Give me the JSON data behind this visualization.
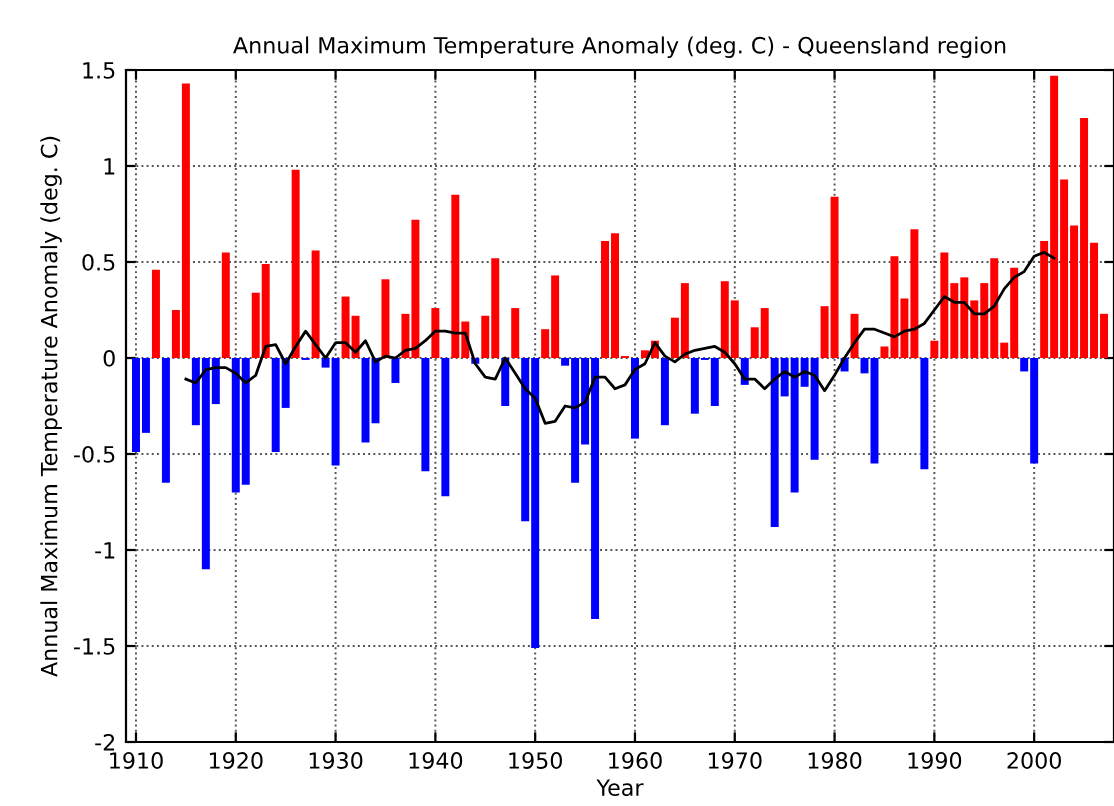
{
  "chart_data": {
    "type": "bar",
    "title": "Annual Maximum Temperature Anomaly (deg. C) - Queensland region",
    "xlabel": "Year",
    "ylabel": "Annual Maximum Temperature Anomaly (deg. C)",
    "xlim": [
      1909,
      2008
    ],
    "xticks": [
      1910,
      1920,
      1930,
      1940,
      1950,
      1960,
      1970,
      1980,
      1990,
      2000
    ],
    "ylim": [
      -2,
      1.5
    ],
    "yticks": [
      -2,
      -1.5,
      -1,
      -0.5,
      0,
      0.5,
      1,
      1.5
    ],
    "grid": true,
    "series": [
      {
        "colors": [
          "#0000ff",
          "#0000ff",
          "#ff0000",
          "#0000ff",
          "#ff0000",
          "#ff0000",
          "#0000ff",
          "#0000ff",
          "#0000ff",
          "#ff0000",
          "#0000ff",
          "#0000ff",
          "#ff0000",
          "#ff0000",
          "#0000ff",
          "#0000ff",
          "#ff0000",
          "#0000ff",
          "#ff0000",
          "#0000ff",
          "#0000ff",
          "#ff0000",
          "#ff0000",
          "#0000ff",
          "#0000ff",
          "#ff0000",
          "#0000ff",
          "#ff0000",
          "#ff0000",
          "#0000ff",
          "#ff0000",
          "#0000ff",
          "#ff0000",
          "#ff0000",
          "#0000ff",
          "#ff0000",
          "#ff0000",
          "#0000ff",
          "#ff0000",
          "#0000ff",
          "#0000ff",
          "#ff0000",
          "#ff0000",
          "#0000ff",
          "#0000ff",
          "#0000ff",
          "#0000ff",
          "#ff0000",
          "#ff0000",
          "#ff0000",
          "#0000ff",
          "#ff0000",
          "#ff0000",
          "#0000ff",
          "#ff0000",
          "#ff0000",
          "#0000ff",
          "#0000ff",
          "#0000ff",
          "#ff0000",
          "#ff0000",
          "#0000ff",
          "#ff0000",
          "#ff0000",
          "#0000ff",
          "#0000ff",
          "#0000ff",
          "#0000ff",
          "#0000ff",
          "#ff0000",
          "#ff0000",
          "#0000ff",
          "#ff0000",
          "#0000ff",
          "#0000ff",
          "#ff0000",
          "#ff0000",
          "#ff0000",
          "#ff0000",
          "#0000ff",
          "#ff0000",
          "#ff0000",
          "#ff0000",
          "#ff0000",
          "#ff0000",
          "#ff0000",
          "#ff0000",
          "#ff0000",
          "#ff0000",
          "#0000ff",
          "#0000ff",
          "#ff0000",
          "#ff0000",
          "#ff0000",
          "#ff0000",
          "#ff0000",
          "#ff0000",
          "#ff0000"
        ],
        "x": [
          1910,
          1911,
          1912,
          1913,
          1914,
          1915,
          1916,
          1917,
          1918,
          1919,
          1920,
          1921,
          1922,
          1923,
          1924,
          1925,
          1926,
          1927,
          1928,
          1929,
          1930,
          1931,
          1932,
          1933,
          1934,
          1935,
          1936,
          1937,
          1938,
          1939,
          1940,
          1941,
          1942,
          1943,
          1944,
          1945,
          1946,
          1947,
          1948,
          1949,
          1950,
          1951,
          1952,
          1953,
          1954,
          1955,
          1956,
          1957,
          1958,
          1959,
          1960,
          1961,
          1962,
          1963,
          1964,
          1965,
          1966,
          1967,
          1968,
          1969,
          1970,
          1971,
          1972,
          1973,
          1974,
          1975,
          1976,
          1977,
          1978,
          1979,
          1980,
          1981,
          1982,
          1983,
          1984,
          1985,
          1986,
          1987,
          1988,
          1989,
          1990,
          1991,
          1992,
          1993,
          1994,
          1995,
          1996,
          1997,
          1998,
          1999,
          2000,
          2001,
          2002,
          2003,
          2004,
          2005,
          2006,
          2007
        ],
        "values": [
          -0.49,
          -0.39,
          0.46,
          -0.65,
          0.25,
          1.43,
          -0.35,
          -1.1,
          -0.24,
          0.55,
          -0.7,
          -0.66,
          0.34,
          0.49,
          -0.49,
          -0.26,
          0.98,
          -0.01,
          0.56,
          -0.05,
          -0.56,
          0.32,
          0.22,
          -0.44,
          -0.34,
          0.41,
          -0.13,
          0.23,
          0.72,
          -0.59,
          0.26,
          -0.72,
          0.85,
          0.19,
          -0.03,
          0.22,
          0.52,
          -0.25,
          0.26,
          -0.85,
          -1.51,
          0.15,
          0.43,
          -0.04,
          -0.65,
          -0.45,
          -1.36,
          0.61,
          0.65,
          0.01,
          -0.42,
          0.04,
          0.09,
          -0.35,
          0.21,
          0.39,
          -0.29,
          -0.01,
          -0.25,
          0.4,
          0.3,
          -0.14,
          0.16,
          0.26,
          -0.88,
          -0.2,
          -0.7,
          -0.15,
          -0.53,
          0.27,
          0.84,
          -0.07,
          0.23,
          -0.08,
          -0.55,
          0.06,
          0.53,
          0.31,
          0.67,
          -0.58,
          0.09,
          0.55,
          0.39,
          0.42,
          0.3,
          0.39,
          0.52,
          0.08,
          0.47,
          -0.07,
          -0.55,
          0.61,
          1.47,
          0.93,
          0.69,
          1.25,
          0.6,
          0.23
        ]
      },
      {
        "type": "line",
        "color": "#000000",
        "x": [
          1915,
          1916,
          1917,
          1918,
          1919,
          1920,
          1921,
          1922,
          1923,
          1924,
          1925,
          1926,
          1927,
          1928,
          1929,
          1930,
          1931,
          1932,
          1933,
          1934,
          1935,
          1936,
          1937,
          1938,
          1939,
          1940,
          1941,
          1942,
          1943,
          1944,
          1945,
          1946,
          1947,
          1948,
          1949,
          1950,
          1951,
          1952,
          1953,
          1954,
          1955,
          1956,
          1957,
          1958,
          1959,
          1960,
          1961,
          1962,
          1963,
          1964,
          1965,
          1966,
          1967,
          1968,
          1969,
          1970,
          1971,
          1972,
          1973,
          1974,
          1975,
          1976,
          1977,
          1978,
          1979,
          1980,
          1981,
          1982,
          1983,
          1984,
          1985,
          1986,
          1987,
          1988,
          1989,
          1990,
          1991,
          1992,
          1993,
          1994,
          1995,
          1996,
          1997,
          1998,
          1999,
          2000,
          2001,
          2002
        ],
        "values": [
          -0.11,
          -0.13,
          -0.06,
          -0.05,
          -0.05,
          -0.08,
          -0.13,
          -0.09,
          0.06,
          0.07,
          -0.03,
          0.06,
          0.14,
          0.07,
          0.0,
          0.08,
          0.08,
          0.03,
          0.09,
          -0.02,
          0.01,
          0.0,
          0.04,
          0.05,
          0.09,
          0.14,
          0.14,
          0.13,
          0.13,
          -0.03,
          -0.1,
          -0.11,
          0.0,
          -0.08,
          -0.16,
          -0.21,
          -0.34,
          -0.33,
          -0.25,
          -0.26,
          -0.23,
          -0.1,
          -0.1,
          -0.16,
          -0.14,
          -0.06,
          -0.03,
          0.08,
          0.01,
          -0.02,
          0.02,
          0.04,
          0.05,
          0.06,
          0.03,
          -0.03,
          -0.11,
          -0.11,
          -0.16,
          -0.11,
          -0.07,
          -0.1,
          -0.07,
          -0.09,
          -0.17,
          -0.09,
          0.0,
          0.08,
          0.15,
          0.15,
          0.13,
          0.11,
          0.14,
          0.15,
          0.18,
          0.25,
          0.32,
          0.29,
          0.29,
          0.23,
          0.23,
          0.27,
          0.36,
          0.42,
          0.45,
          0.53,
          0.55,
          0.52
        ]
      }
    ]
  }
}
